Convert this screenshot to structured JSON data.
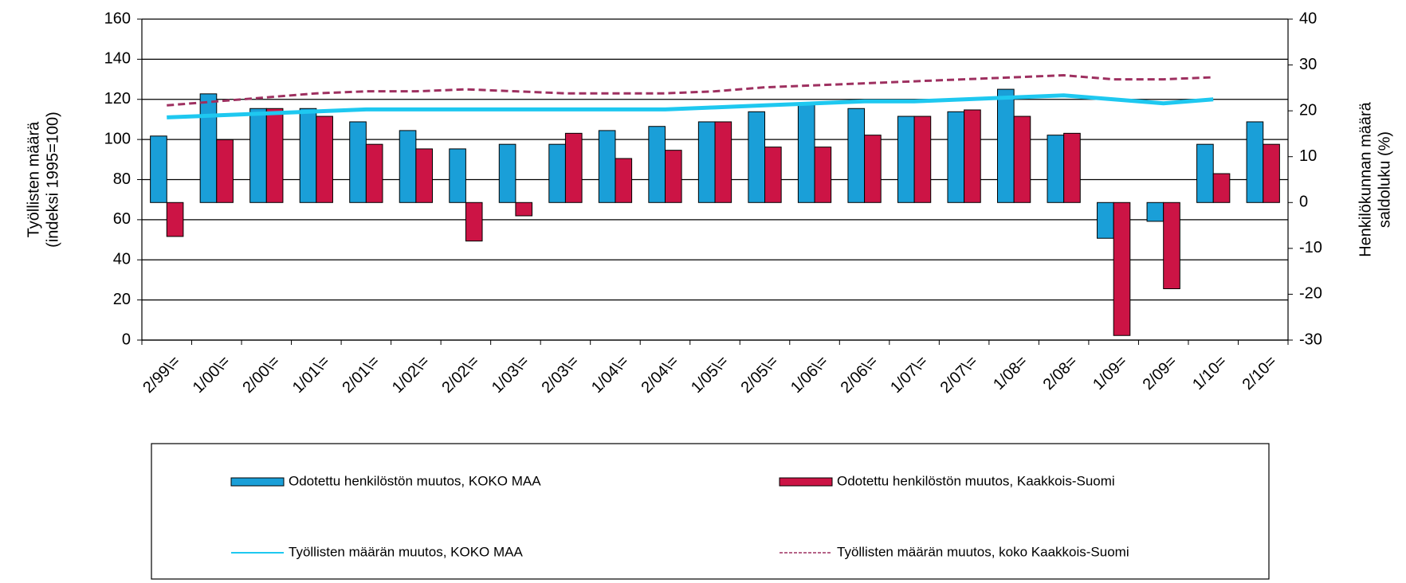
{
  "chart_data": {
    "type": "bar",
    "y_label": [
      "Työllisten määrä",
      "(indeksi 1995=100)"
    ],
    "y2_label": [
      "Henkilökunnan määrä",
      "saldoluku (%)"
    ],
    "categories": [
      "2/99\\=",
      "1/00\\=",
      "2/00\\=",
      "1/01\\=",
      "2/01\\=",
      "1/02\\=",
      "2/02\\=",
      "1/03\\=",
      "2/03\\=",
      "1/04\\=",
      "2/04\\=",
      "1/05\\=",
      "2/05\\=",
      "1/06\\=",
      "2/06\\=",
      "1/07\\=",
      "2/07\\=",
      "1/08=",
      "2/08=",
      "1/09=",
      "2/09=",
      "1/10=",
      "2/10="
    ],
    "series": [
      {
        "name": "Odotettu henkilöstön muutos, KOKO MAA",
        "type": "bar",
        "axis": "y2",
        "color": "#1a9fd8",
        "values": [
          14.5,
          23.7,
          20.5,
          20.5,
          17.6,
          15.7,
          11.7,
          12.7,
          12.7,
          15.7,
          16.6,
          17.6,
          19.8,
          21.3,
          20.5,
          18.8,
          19.8,
          24.7,
          14.7,
          -7.8,
          -4.1,
          12.7,
          17.6
        ]
      },
      {
        "name": "Odotettu henkilöstön muutos, Kaakkois-Suomi",
        "type": "bar",
        "axis": "y2",
        "color": "#cc1445",
        "values": [
          -7.4,
          13.7,
          20.5,
          18.8,
          12.7,
          11.7,
          -8.4,
          -2.9,
          15.1,
          9.6,
          11.4,
          17.6,
          12.1,
          12.1,
          14.7,
          18.8,
          20.2,
          18.8,
          15.1,
          -29,
          -18.8,
          6.3,
          12.7
        ]
      },
      {
        "name": "Työllisten määrän muutos, KOKO MAA",
        "type": "line",
        "color": "#1ec8f0",
        "values": [
          111,
          112,
          113,
          114,
          115,
          115,
          115,
          115,
          115,
          115,
          115,
          116,
          117,
          118,
          119,
          119,
          120,
          121,
          122,
          120,
          118,
          120,
          null
        ]
      },
      {
        "name": "Työllisten määrän muutos, koko Kaakkois-Suomi",
        "type": "line",
        "dashed": true,
        "color": "#9e3060",
        "values": [
          117,
          119,
          121,
          123,
          124,
          124,
          125,
          124,
          123,
          123,
          123,
          124,
          126,
          127,
          128,
          129,
          130,
          131,
          132,
          130,
          130,
          131,
          null
        ]
      }
    ],
    "ylim": [
      0,
      160
    ],
    "yticks": [
      0,
      20,
      40,
      60,
      80,
      100,
      120,
      140,
      160
    ],
    "y2lim": [
      -30,
      40
    ],
    "y2ticks": [
      -30,
      -20,
      -10,
      0,
      10,
      20,
      30,
      40
    ],
    "grid": true
  }
}
